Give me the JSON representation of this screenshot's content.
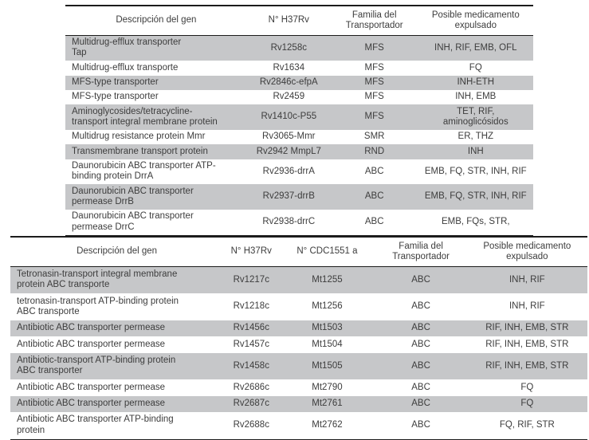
{
  "colors": {
    "row_shaded": "#c6c7c9",
    "table_border": "#1c1c1c",
    "text": "#3d3d3d",
    "page_background": "#ffffff"
  },
  "tables": [
    {
      "name": "efflux-transporter-genes-h37rv",
      "columns": [
        "Descripción del gen",
        "N° H37Rv",
        "Familia del\nTransportador",
        "Posible medicamento\nexpulsado"
      ],
      "rows": [
        {
          "shaded": true,
          "cells": [
            "Multidrug-efflux transporter\nTap",
            "Rv1258c",
            "MFS",
            "INH, RIF, EMB, OFL"
          ]
        },
        {
          "shaded": false,
          "cells": [
            "Multidrug-efflux transporte",
            "Rv1634",
            "MFS",
            "FQ"
          ]
        },
        {
          "shaded": true,
          "cells": [
            "MFS-type transporter",
            "Rv2846c-efpA",
            "MFS",
            "INH-ETH"
          ]
        },
        {
          "shaded": false,
          "cells": [
            "MFS-type transporter",
            "Rv2459",
            "MFS",
            "INH, EMB"
          ]
        },
        {
          "shaded": true,
          "cells": [
            "Aminoglycosides/tetracycline-\ntransport integral membrane protein",
            "Rv1410c-P55",
            "MFS",
            "TET, RIF,\naminoglicósidos"
          ]
        },
        {
          "shaded": false,
          "cells": [
            "Multidrug resistance protein Mmr",
            "Rv3065-Mmr",
            "SMR",
            "ER, THZ"
          ]
        },
        {
          "shaded": true,
          "cells": [
            "Transmembrane transport protein",
            "Rv2942 MmpL7",
            "RND",
            "INH"
          ]
        },
        {
          "shaded": false,
          "cells": [
            "Daunorubicin ABC transporter ATP-\nbinding protein DrrA",
            "Rv2936-drrA",
            "ABC",
            "EMB, FQ, STR, INH, RIF"
          ]
        },
        {
          "shaded": true,
          "cells": [
            "Daunorubicin ABC transporter\npermease DrrB",
            "Rv2937-drrB",
            "ABC",
            "EMB, FQ, STR, INH, RIF"
          ]
        },
        {
          "shaded": false,
          "cells": [
            "Daunorubicin ABC transporter\npermease DrrC",
            "Rv2938-drrC",
            "ABC",
            "EMB, FQs, STR,"
          ]
        }
      ]
    },
    {
      "name": "abc-transporter-genes-h37rv-cdc1551",
      "columns": [
        "Descripción del gen",
        "N° H37Rv",
        "N° CDC1551 a",
        "Familia del\nTransportador",
        "Posible medicamento\nexpulsado"
      ],
      "rows": [
        {
          "shaded": true,
          "cells": [
            "Tetronasin-transport integral membrane\nprotein ABC transporte",
            "Rv1217c",
            "Mt1255",
            "ABC",
            "INH, RIF"
          ]
        },
        {
          "shaded": false,
          "cells": [
            "tetronasin-transport ATP-binding protein\nABC transporte",
            "Rv1218c",
            "Mt1256",
            "ABC",
            "INH, RIF"
          ]
        },
        {
          "shaded": true,
          "cells": [
            "Antibiotic ABC transporter permease",
            "Rv1456c",
            "Mt1503",
            "ABC",
            "RIF, INH, EMB, STR"
          ]
        },
        {
          "shaded": false,
          "cells": [
            "Antibiotic ABC transporter permease",
            "Rv1457c",
            "Mt1504",
            "ABC",
            "RIF, INH, EMB, STR"
          ]
        },
        {
          "shaded": true,
          "cells": [
            "Antibiotic-transport ATP-binding protein\nABC transporter",
            "Rv1458c",
            "Mt1505",
            "ABC",
            "RIF, INH, EMB, STR"
          ]
        },
        {
          "shaded": false,
          "cells": [
            "Antibiotic ABC transporter permease",
            "Rv2686c",
            "Mt2790",
            "ABC",
            "FQ"
          ]
        },
        {
          "shaded": true,
          "cells": [
            "Antibiotic ABC transporter permease",
            "Rv2687c",
            "Mt2761",
            "ABC",
            "FQ"
          ]
        },
        {
          "shaded": false,
          "cells": [
            "Antibiotic ABC transporter ATP-binding\nprotein",
            "Rv2688c",
            "Mt2762",
            "ABC",
            "FQ, RIF, STR"
          ]
        }
      ]
    }
  ]
}
